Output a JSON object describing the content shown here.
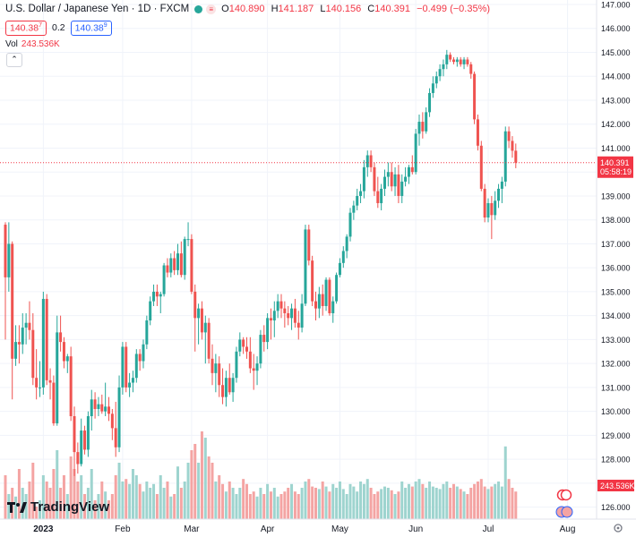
{
  "header": {
    "symbol": "U.S. Dollar / Japanese Yen · 1D · FXCM",
    "open_label": "O",
    "open": "140.890",
    "high_label": "H",
    "high": "141.187",
    "low_label": "L",
    "low": "140.156",
    "close_label": "C",
    "close": "140.391",
    "change": "−0.499 (−0.35%)",
    "sell_price": "140.38",
    "sell_sup": "7",
    "spread": "0.2",
    "buy_price": "140.38",
    "buy_sup": "9"
  },
  "volume": {
    "label": "Vol",
    "value": "243.536K"
  },
  "collapse_symbol": "⌃",
  "logo_text": "TradingView",
  "last_price": {
    "value": "140.391",
    "countdown": "05:58:19",
    "volume_tag": "243.536K"
  },
  "colors": {
    "up": "#26a69a",
    "down": "#ef5350",
    "up_vol": "#9ed4cf",
    "down_vol": "#f4a4a3",
    "price_tag": "#f23645"
  },
  "chart_data": {
    "type": "candlestick",
    "title": "U.S. Dollar / Japanese Yen · 1D · FXCM",
    "ylim": [
      125.5,
      147.0
    ],
    "y_ticks": [
      "126.000",
      "127.000",
      "128.000",
      "129.000",
      "130.000",
      "131.000",
      "132.000",
      "133.000",
      "134.000",
      "135.000",
      "136.000",
      "137.000",
      "138.000",
      "139.000",
      "140.000",
      "141.000",
      "142.000",
      "143.000",
      "144.000",
      "145.000",
      "146.000",
      "147.000"
    ],
    "x_ticks": [
      "2023",
      "Feb",
      "Mar",
      "Apr",
      "May",
      "Jun",
      "Jul",
      "Aug"
    ],
    "x_tick_index": [
      11,
      34,
      54,
      76,
      97,
      119,
      140,
      163
    ],
    "grid": true,
    "ohlc": [
      [
        137.8,
        137.9,
        133.0,
        135.6
      ],
      [
        135.6,
        137.9,
        135.0,
        137.0
      ],
      [
        137.0,
        137.1,
        130.5,
        132.2
      ],
      [
        132.2,
        133.6,
        131.9,
        132.9
      ],
      [
        132.9,
        133.6,
        132.0,
        132.8
      ],
      [
        132.8,
        134.1,
        132.4,
        133.5
      ],
      [
        133.5,
        134.1,
        132.8,
        133.7
      ],
      [
        133.7,
        134.6,
        133.0,
        133.4
      ],
      [
        133.4,
        134.1,
        131.1,
        131.4
      ],
      [
        131.4,
        132.6,
        130.5,
        131.0
      ],
      [
        131.0,
        132.1,
        130.6,
        131.0
      ],
      [
        131.0,
        135.0,
        130.7,
        134.7
      ],
      [
        134.7,
        134.9,
        131.1,
        131.3
      ],
      [
        131.3,
        131.8,
        130.5,
        131.2
      ],
      [
        131.2,
        131.5,
        129.4,
        129.5
      ],
      [
        129.5,
        134.0,
        129.4,
        133.3
      ],
      [
        133.3,
        134.0,
        132.5,
        132.9
      ],
      [
        132.9,
        133.1,
        131.8,
        132.1
      ],
      [
        132.1,
        132.4,
        131.6,
        132.3
      ],
      [
        132.3,
        132.7,
        129.6,
        129.8
      ],
      [
        129.8,
        130.2,
        127.3,
        128.3
      ],
      [
        128.3,
        128.7,
        127.4,
        127.8
      ],
      [
        127.8,
        129.7,
        127.7,
        129.2
      ],
      [
        129.2,
        129.4,
        128.2,
        128.4
      ],
      [
        128.4,
        130.0,
        128.1,
        129.8
      ],
      [
        129.8,
        130.9,
        129.2,
        130.5
      ],
      [
        130.5,
        130.8,
        129.7,
        130.1
      ],
      [
        130.1,
        130.6,
        129.8,
        130.3
      ],
      [
        130.3,
        130.7,
        129.9,
        130.0
      ],
      [
        130.0,
        131.2,
        129.8,
        130.2
      ],
      [
        130.2,
        130.6,
        129.6,
        129.9
      ],
      [
        129.9,
        130.1,
        128.8,
        129.3
      ],
      [
        129.3,
        130.4,
        128.1,
        128.5
      ],
      [
        128.5,
        131.5,
        128.3,
        131.0
      ],
      [
        131.0,
        132.9,
        130.7,
        132.7
      ],
      [
        132.7,
        132.9,
        130.8,
        131.0
      ],
      [
        131.0,
        131.6,
        130.6,
        131.2
      ],
      [
        131.2,
        131.7,
        130.8,
        131.4
      ],
      [
        131.4,
        132.6,
        131.2,
        132.4
      ],
      [
        132.4,
        132.6,
        131.7,
        132.1
      ],
      [
        132.1,
        133.0,
        131.8,
        132.8
      ],
      [
        132.8,
        134.0,
        132.6,
        133.8
      ],
      [
        133.8,
        134.8,
        133.6,
        134.6
      ],
      [
        134.6,
        135.3,
        134.4,
        135.0
      ],
      [
        135.0,
        135.3,
        134.4,
        134.8
      ],
      [
        134.8,
        135.0,
        134.1,
        134.9
      ],
      [
        134.9,
        136.2,
        134.8,
        136.1
      ],
      [
        136.1,
        136.4,
        135.6,
        135.8
      ],
      [
        135.8,
        136.6,
        135.6,
        136.4
      ],
      [
        136.4,
        136.7,
        135.7,
        135.9
      ],
      [
        135.9,
        137.0,
        135.7,
        136.6
      ],
      [
        136.6,
        137.1,
        135.6,
        135.7
      ],
      [
        135.7,
        137.3,
        135.5,
        137.2
      ],
      [
        137.2,
        137.9,
        136.9,
        137.2
      ],
      [
        137.2,
        137.4,
        134.9,
        135.0
      ],
      [
        135.0,
        135.3,
        132.5,
        133.9
      ],
      [
        133.9,
        134.5,
        132.8,
        134.3
      ],
      [
        134.3,
        134.6,
        133.0,
        133.3
      ],
      [
        133.3,
        134.0,
        132.0,
        133.7
      ],
      [
        133.7,
        133.9,
        132.0,
        132.2
      ],
      [
        132.2,
        132.8,
        131.1,
        131.6
      ],
      [
        131.6,
        132.4,
        130.8,
        132.0
      ],
      [
        132.0,
        132.3,
        130.6,
        131.1
      ],
      [
        131.1,
        131.8,
        130.3,
        130.6
      ],
      [
        130.6,
        131.7,
        130.2,
        131.4
      ],
      [
        131.4,
        132.0,
        130.7,
        130.8
      ],
      [
        130.8,
        131.6,
        130.4,
        131.4
      ],
      [
        131.4,
        132.7,
        131.2,
        132.5
      ],
      [
        132.5,
        133.3,
        132.3,
        133.0
      ],
      [
        133.0,
        133.1,
        132.4,
        132.7
      ],
      [
        132.7,
        133.1,
        132.2,
        132.5
      ],
      [
        132.5,
        133.1,
        131.6,
        131.8
      ],
      [
        131.8,
        132.4,
        130.9,
        131.7
      ],
      [
        131.7,
        132.3,
        131.1,
        132.0
      ],
      [
        132.0,
        133.4,
        131.8,
        133.2
      ],
      [
        133.2,
        133.6,
        132.5,
        132.9
      ],
      [
        132.9,
        134.1,
        132.6,
        133.9
      ],
      [
        133.9,
        134.3,
        133.0,
        133.8
      ],
      [
        133.8,
        134.6,
        133.1,
        134.2
      ],
      [
        134.2,
        134.9,
        133.9,
        134.6
      ],
      [
        134.6,
        134.9,
        133.9,
        134.3
      ],
      [
        134.3,
        134.6,
        133.5,
        134.1
      ],
      [
        134.1,
        134.4,
        133.6,
        133.9
      ],
      [
        133.9,
        134.5,
        133.4,
        134.3
      ],
      [
        134.3,
        134.7,
        133.5,
        133.7
      ],
      [
        133.7,
        134.2,
        133.0,
        133.5
      ],
      [
        133.5,
        134.9,
        133.3,
        134.5
      ],
      [
        134.5,
        137.8,
        134.4,
        137.6
      ],
      [
        137.6,
        137.8,
        136.1,
        136.3
      ],
      [
        136.3,
        136.5,
        134.4,
        134.6
      ],
      [
        134.6,
        135.0,
        133.8,
        134.3
      ],
      [
        134.3,
        135.2,
        133.9,
        134.9
      ],
      [
        134.9,
        135.3,
        134.0,
        134.4
      ],
      [
        134.4,
        135.6,
        134.2,
        135.5
      ],
      [
        135.5,
        135.6,
        134.0,
        134.1
      ],
      [
        134.1,
        134.8,
        133.7,
        134.6
      ],
      [
        134.6,
        135.8,
        134.5,
        135.7
      ],
      [
        135.7,
        136.4,
        135.6,
        136.2
      ],
      [
        136.2,
        136.9,
        136.0,
        136.7
      ],
      [
        136.7,
        137.4,
        136.4,
        137.3
      ],
      [
        137.3,
        138.5,
        137.1,
        138.3
      ],
      [
        138.3,
        138.8,
        138.0,
        138.6
      ],
      [
        138.6,
        139.3,
        138.4,
        139.0
      ],
      [
        139.0,
        139.5,
        138.7,
        139.2
      ],
      [
        139.2,
        140.5,
        138.9,
        140.2
      ],
      [
        140.2,
        140.9,
        139.8,
        140.7
      ],
      [
        140.7,
        140.9,
        140.0,
        140.2
      ],
      [
        140.2,
        140.4,
        139.0,
        139.2
      ],
      [
        139.2,
        139.8,
        138.5,
        138.7
      ],
      [
        138.7,
        139.5,
        138.4,
        139.3
      ],
      [
        139.3,
        140.1,
        139.0,
        139.8
      ],
      [
        139.8,
        140.4,
        139.4,
        140.0
      ],
      [
        140.0,
        140.4,
        139.2,
        139.4
      ],
      [
        139.4,
        140.2,
        139.0,
        139.9
      ],
      [
        139.9,
        140.3,
        138.7,
        139.0
      ],
      [
        139.0,
        139.9,
        138.7,
        139.6
      ],
      [
        139.6,
        140.2,
        139.4,
        139.8
      ],
      [
        139.8,
        140.3,
        139.5,
        140.2
      ],
      [
        140.2,
        140.7,
        139.9,
        140.0
      ],
      [
        140.0,
        141.8,
        139.9,
        141.6
      ],
      [
        141.6,
        142.4,
        141.1,
        142.1
      ],
      [
        142.1,
        142.5,
        141.4,
        141.7
      ],
      [
        141.7,
        142.7,
        141.6,
        142.5
      ],
      [
        142.5,
        143.5,
        142.3,
        143.3
      ],
      [
        143.3,
        144.0,
        143.1,
        143.7
      ],
      [
        143.7,
        144.2,
        143.5,
        144.0
      ],
      [
        144.0,
        144.5,
        143.8,
        144.3
      ],
      [
        144.3,
        144.7,
        144.0,
        144.5
      ],
      [
        144.5,
        145.1,
        144.3,
        144.9
      ],
      [
        144.9,
        145.0,
        144.6,
        144.7
      ],
      [
        144.7,
        144.8,
        144.5,
        144.6
      ],
      [
        144.6,
        144.8,
        144.4,
        144.7
      ],
      [
        144.7,
        144.8,
        144.4,
        144.5
      ],
      [
        144.5,
        144.8,
        144.3,
        144.7
      ],
      [
        144.7,
        144.8,
        144.4,
        144.5
      ],
      [
        144.5,
        144.6,
        143.9,
        144.1
      ],
      [
        144.1,
        144.2,
        142.0,
        142.2
      ],
      [
        142.2,
        142.4,
        140.9,
        141.1
      ],
      [
        141.1,
        141.3,
        139.2,
        139.3
      ],
      [
        139.3,
        139.5,
        137.9,
        138.1
      ],
      [
        138.1,
        138.9,
        137.9,
        138.7
      ],
      [
        138.7,
        139.0,
        137.2,
        138.2
      ],
      [
        138.2,
        139.2,
        138.0,
        138.8
      ],
      [
        138.8,
        139.5,
        138.5,
        139.3
      ],
      [
        139.3,
        139.8,
        138.7,
        139.6
      ],
      [
        139.6,
        141.9,
        139.4,
        141.7
      ],
      [
        141.7,
        141.9,
        141.0,
        141.3
      ],
      [
        141.3,
        141.5,
        140.6,
        140.89
      ],
      [
        140.89,
        141.19,
        140.16,
        140.39
      ]
    ],
    "volume": [
      0.35,
      0.2,
      0.25,
      0.18,
      0.4,
      0.25,
      0.2,
      0.3,
      0.45,
      0.1,
      0.15,
      0.35,
      0.3,
      0.25,
      0.4,
      0.55,
      0.25,
      0.35,
      0.2,
      0.5,
      0.4,
      0.3,
      0.35,
      0.2,
      0.25,
      0.4,
      0.15,
      0.2,
      0.3,
      0.22,
      0.15,
      0.2,
      0.35,
      0.45,
      0.3,
      0.32,
      0.28,
      0.4,
      0.35,
      0.28,
      0.22,
      0.3,
      0.25,
      0.28,
      0.2,
      0.35,
      0.25,
      0.3,
      0.18,
      0.2,
      0.42,
      0.25,
      0.3,
      0.45,
      0.55,
      0.6,
      0.45,
      0.7,
      0.65,
      0.5,
      0.45,
      0.3,
      0.35,
      0.28,
      0.22,
      0.3,
      0.25,
      0.2,
      0.25,
      0.32,
      0.28,
      0.2,
      0.22,
      0.18,
      0.25,
      0.2,
      0.28,
      0.22,
      0.25,
      0.18,
      0.2,
      0.22,
      0.25,
      0.28,
      0.22,
      0.2,
      0.25,
      0.3,
      0.32,
      0.26,
      0.25,
      0.24,
      0.3,
      0.26,
      0.22,
      0.28,
      0.25,
      0.3,
      0.24,
      0.2,
      0.28,
      0.26,
      0.22,
      0.3,
      0.28,
      0.32,
      0.25,
      0.2,
      0.22,
      0.24,
      0.26,
      0.25,
      0.23,
      0.2,
      0.22,
      0.3,
      0.25,
      0.28,
      0.26,
      0.3,
      0.32,
      0.28,
      0.25,
      0.3,
      0.26,
      0.25,
      0.24,
      0.28,
      0.3,
      0.25,
      0.28,
      0.26,
      0.24,
      0.22,
      0.2,
      0.25,
      0.28,
      0.3,
      0.32,
      0.26,
      0.24,
      0.26,
      0.28,
      0.3,
      0.26,
      0.58,
      0.32,
      0.25,
      0.22
    ]
  }
}
